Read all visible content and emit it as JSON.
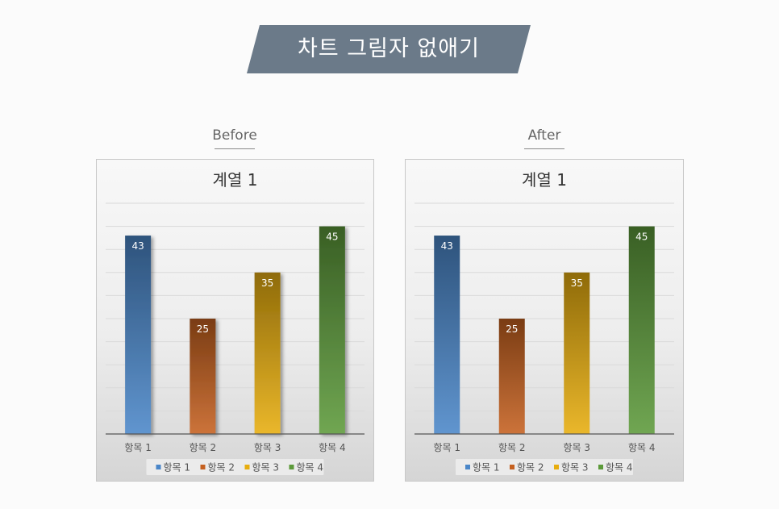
{
  "page": {
    "title": "차트 그림자 없애기",
    "banner_color": "#6b7a89"
  },
  "panels": [
    {
      "label": "Before"
    },
    {
      "label": "After"
    }
  ],
  "chart_data": [
    {
      "type": "bar",
      "title": "계열 1",
      "categories": [
        "항목 1",
        "항목 2",
        "항목 3",
        "항목 4"
      ],
      "values": [
        43,
        25,
        35,
        45
      ],
      "ylim": [
        0,
        50
      ],
      "grid": true,
      "data_labels": true,
      "shadow": true,
      "legend": "bottom",
      "colors": [
        "#4a86c8",
        "#c5601f",
        "#e7ad0e",
        "#5c9a3a"
      ]
    },
    {
      "type": "bar",
      "title": "계열 1",
      "categories": [
        "항목 1",
        "항목 2",
        "항목 3",
        "항목 4"
      ],
      "values": [
        43,
        25,
        35,
        45
      ],
      "ylim": [
        0,
        50
      ],
      "grid": true,
      "data_labels": true,
      "shadow": false,
      "legend": "bottom",
      "colors": [
        "#4a86c8",
        "#c5601f",
        "#e7ad0e",
        "#5c9a3a"
      ]
    }
  ]
}
